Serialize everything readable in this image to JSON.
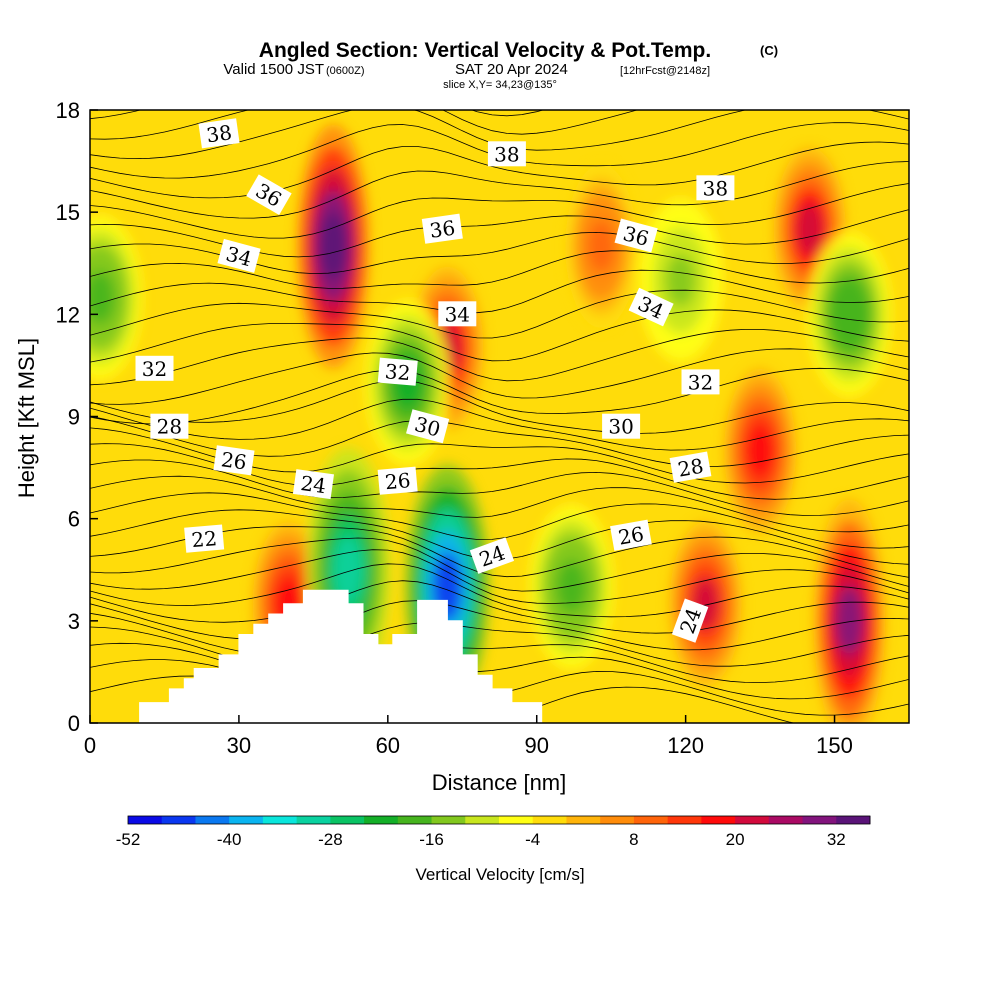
{
  "header": {
    "title": "Angled Section: Vertical Velocity & Pot.Temp.",
    "title_tag": "(C)",
    "valid_pre": "Valid 1500 JST",
    "valid_zulu": "(0600Z)",
    "valid_date": "SAT 20 Apr 2024",
    "valid_fcst": "[12hrFcst@2148z]",
    "slice": "slice X,Y= 34,23@135°"
  },
  "chart_data": {
    "type": "heatmap",
    "xlabel": "Distance [nm]",
    "ylabel": "Height [Kft MSL]",
    "xlim": [
      0,
      165
    ],
    "ylim": [
      0,
      18
    ],
    "x_ticks": [
      0,
      30,
      60,
      90,
      120,
      150
    ],
    "y_ticks": [
      0,
      3,
      6,
      9,
      12,
      15,
      18
    ],
    "colorbar": {
      "title": "Vertical Velocity [cm/s]",
      "min": -52,
      "max": 36,
      "step": 4,
      "tick_labels": [
        "-52",
        "-40",
        "-28",
        "-16",
        "-4",
        "8",
        "20",
        "32"
      ],
      "tick_values": [
        -52,
        -40,
        -28,
        -16,
        -4,
        8,
        20,
        32
      ],
      "colors": [
        "#0a0ae6",
        "#0a37f0",
        "#0a78f0",
        "#0ab4f0",
        "#0ae6dc",
        "#0ad2a0",
        "#0ac364",
        "#14af28",
        "#46b41e",
        "#82c81e",
        "#c8e61e",
        "#ffff14",
        "#ffdc0a",
        "#ffb40a",
        "#ff8c0a",
        "#ff640a",
        "#ff370a",
        "#ff0a0a",
        "#d20a3c",
        "#aa0a64",
        "#82147d",
        "#5a1478"
      ]
    },
    "features": [
      {
        "name": "updraft-core-1",
        "x": 49,
        "y": 14.0,
        "value": 36
      },
      {
        "name": "updraft-core-2",
        "x": 72,
        "y": 11.0,
        "value": 22
      },
      {
        "name": "updraft-core-3",
        "x": 145,
        "y": 14.5,
        "value": 22
      },
      {
        "name": "updraft-core-4",
        "x": 153,
        "y": 3.0,
        "value": 30
      },
      {
        "name": "updraft-core-5",
        "x": 124,
        "y": 3.5,
        "value": 20
      },
      {
        "name": "updraft-low-left",
        "x": 40,
        "y": 3.5,
        "value": 18
      },
      {
        "name": "updraft-mid-right",
        "x": 135,
        "y": 8.0,
        "value": 16
      },
      {
        "name": "updraft-upper-center",
        "x": 103,
        "y": 14.0,
        "value": 10
      },
      {
        "name": "downdraft-core-1",
        "x": 72,
        "y": 4.0,
        "value": -48
      },
      {
        "name": "downdraft-core-2",
        "x": 52,
        "y": 4.5,
        "value": -30
      },
      {
        "name": "downdraft-core-3",
        "x": 64,
        "y": 10.0,
        "value": -22
      },
      {
        "name": "downdraft-core-4",
        "x": 97,
        "y": 4.0,
        "value": -18
      },
      {
        "name": "downdraft-core-5",
        "x": 153,
        "y": 12.0,
        "value": -20
      },
      {
        "name": "downdraft-core-6",
        "x": 2,
        "y": 12.5,
        "value": -18
      },
      {
        "name": "downdraft-core-7",
        "x": 119,
        "y": 13.0,
        "value": -14
      }
    ],
    "isentropes": {
      "interval": 1,
      "labels": [
        {
          "text": "38",
          "x": 26,
          "y": 17.3,
          "angle": -8
        },
        {
          "text": "36",
          "x": 36,
          "y": 15.5,
          "angle": 30
        },
        {
          "text": "34",
          "x": 30,
          "y": 13.7,
          "angle": 15
        },
        {
          "text": "32",
          "x": 13,
          "y": 10.4,
          "angle": 0
        },
        {
          "text": "28",
          "x": 16,
          "y": 8.7,
          "angle": 0
        },
        {
          "text": "26",
          "x": 29,
          "y": 7.7,
          "angle": 8
        },
        {
          "text": "22",
          "x": 23,
          "y": 5.4,
          "angle": -5
        },
        {
          "text": "24",
          "x": 45,
          "y": 7.0,
          "angle": 8
        },
        {
          "text": "38",
          "x": 84,
          "y": 16.7,
          "angle": 0
        },
        {
          "text": "36",
          "x": 71,
          "y": 14.5,
          "angle": -8
        },
        {
          "text": "34",
          "x": 74,
          "y": 12.0,
          "angle": 0
        },
        {
          "text": "32",
          "x": 62,
          "y": 10.3,
          "angle": 5
        },
        {
          "text": "30",
          "x": 68,
          "y": 8.7,
          "angle": 15
        },
        {
          "text": "26",
          "x": 62,
          "y": 7.1,
          "angle": -5
        },
        {
          "text": "24",
          "x": 81,
          "y": 4.9,
          "angle": -20
        },
        {
          "text": "38",
          "x": 126,
          "y": 15.7,
          "angle": 0
        },
        {
          "text": "36",
          "x": 110,
          "y": 14.3,
          "angle": 15
        },
        {
          "text": "34",
          "x": 113,
          "y": 12.2,
          "angle": 25
        },
        {
          "text": "32",
          "x": 123,
          "y": 10.0,
          "angle": 0
        },
        {
          "text": "30",
          "x": 107,
          "y": 8.7,
          "angle": 0
        },
        {
          "text": "28",
          "x": 121,
          "y": 7.5,
          "angle": -10
        },
        {
          "text": "26",
          "x": 109,
          "y": 5.5,
          "angle": -10
        },
        {
          "text": "24",
          "x": 121,
          "y": 3.0,
          "angle": -70
        }
      ]
    },
    "terrain": [
      [
        0,
        0
      ],
      [
        10,
        0
      ],
      [
        10,
        0.6
      ],
      [
        16,
        0.6
      ],
      [
        16,
        1.0
      ],
      [
        19,
        1.0
      ],
      [
        19,
        1.3
      ],
      [
        21,
        1.3
      ],
      [
        21,
        1.6
      ],
      [
        26,
        1.6
      ],
      [
        26,
        2.0
      ],
      [
        30,
        2.0
      ],
      [
        30,
        2.6
      ],
      [
        33,
        2.6
      ],
      [
        33,
        2.9
      ],
      [
        36,
        2.9
      ],
      [
        36,
        3.2
      ],
      [
        39,
        3.2
      ],
      [
        39,
        3.5
      ],
      [
        43,
        3.5
      ],
      [
        43,
        3.9
      ],
      [
        52,
        3.9
      ],
      [
        52,
        3.5
      ],
      [
        55,
        3.5
      ],
      [
        55,
        2.6
      ],
      [
        58,
        2.6
      ],
      [
        58,
        2.3
      ],
      [
        61,
        2.3
      ],
      [
        61,
        2.6
      ],
      [
        66,
        2.6
      ],
      [
        66,
        3.6
      ],
      [
        72,
        3.6
      ],
      [
        72,
        3.0
      ],
      [
        75,
        3.0
      ],
      [
        75,
        2.0
      ],
      [
        78,
        2.0
      ],
      [
        78,
        1.4
      ],
      [
        81,
        1.4
      ],
      [
        81,
        1.0
      ],
      [
        85,
        1.0
      ],
      [
        85,
        0.6
      ],
      [
        91,
        0.6
      ],
      [
        91,
        0
      ],
      [
        165,
        0
      ]
    ]
  }
}
